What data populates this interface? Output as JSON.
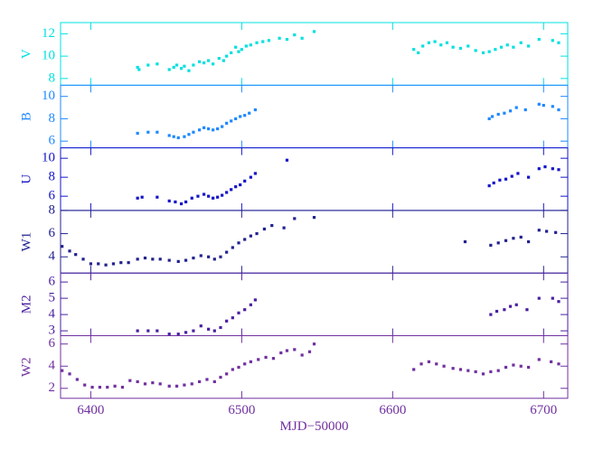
{
  "chart_data": [
    {
      "type": "scatter",
      "ylabel": "V",
      "color": "#00e0e0",
      "x": [
        6431,
        6432,
        6438,
        6444,
        6452,
        6455,
        6457,
        6460,
        6462,
        6465,
        6468,
        6472,
        6475,
        6478,
        6481,
        6485,
        6488,
        6490,
        6493,
        6496,
        6498,
        6500,
        6503,
        6506,
        6510,
        6514,
        6518,
        6525,
        6530,
        6535,
        6540,
        6548,
        6614,
        6617,
        6620,
        6624,
        6628,
        6632,
        6636,
        6640,
        6645,
        6650,
        6655,
        6660,
        6664,
        6668,
        6672,
        6676,
        6680,
        6685,
        6690,
        6697,
        6706,
        6710
      ],
      "values": [
        9.0,
        8.8,
        9.2,
        9.3,
        8.8,
        9.0,
        9.2,
        8.9,
        9.1,
        8.7,
        9.2,
        9.5,
        9.4,
        9.6,
        9.3,
        9.8,
        9.6,
        10.0,
        10.3,
        10.8,
        10.4,
        10.6,
        10.9,
        11.0,
        11.2,
        11.3,
        11.4,
        11.6,
        11.5,
        11.9,
        11.6,
        12.2,
        10.6,
        10.3,
        10.9,
        11.2,
        11.3,
        11.0,
        11.2,
        10.8,
        10.7,
        10.9,
        10.5,
        10.3,
        10.4,
        10.6,
        10.8,
        11.0,
        10.8,
        11.2,
        10.9,
        11.5,
        11.4,
        11.2
      ],
      "xlim": [
        6380,
        6716
      ],
      "xticks": [
        6400,
        6500,
        6600,
        6700
      ],
      "ylim": [
        7.4,
        13
      ],
      "yticks": [
        8,
        10,
        12
      ]
    },
    {
      "type": "scatter",
      "ylabel": "B",
      "color": "#1e88ff",
      "x": [
        6431,
        6438,
        6444,
        6452,
        6455,
        6458,
        6462,
        6465,
        6468,
        6472,
        6475,
        6478,
        6481,
        6484,
        6487,
        6490,
        6493,
        6496,
        6499,
        6502,
        6505,
        6509,
        6664,
        6666,
        6670,
        6674,
        6678,
        6682,
        6688,
        6697,
        6700,
        6706,
        6710
      ],
      "values": [
        6.7,
        6.8,
        6.8,
        6.5,
        6.4,
        6.3,
        6.4,
        6.6,
        6.8,
        7.0,
        7.2,
        7.1,
        7.0,
        7.1,
        7.3,
        7.6,
        7.8,
        8.0,
        8.2,
        8.3,
        8.5,
        8.8,
        8.0,
        8.2,
        8.4,
        8.5,
        8.7,
        9.0,
        8.8,
        9.3,
        9.2,
        9.1,
        8.8
      ],
      "xlim": [
        6380,
        6716
      ],
      "xticks": [
        6400,
        6500,
        6600,
        6700
      ],
      "ylim": [
        5.4,
        11
      ],
      "yticks": [
        6,
        8,
        10
      ]
    },
    {
      "type": "scatter",
      "ylabel": "U",
      "color": "#1414c8",
      "x": [
        6431,
        6434,
        6444,
        6452,
        6456,
        6460,
        6463,
        6467,
        6471,
        6475,
        6478,
        6481,
        6484,
        6487,
        6490,
        6493,
        6496,
        6499,
        6502,
        6506,
        6509,
        6530,
        6664,
        6667,
        6671,
        6675,
        6679,
        6683,
        6690,
        6697,
        6701,
        6706,
        6710
      ],
      "values": [
        5.8,
        5.9,
        5.9,
        5.5,
        5.4,
        5.2,
        5.4,
        5.8,
        6.0,
        6.2,
        6.0,
        5.8,
        5.9,
        6.1,
        6.4,
        6.7,
        7.0,
        7.2,
        7.6,
        8.0,
        8.4,
        9.8,
        7.1,
        7.4,
        7.7,
        7.8,
        8.1,
        8.4,
        8.0,
        8.9,
        9.1,
        8.9,
        8.8
      ],
      "xlim": [
        6380,
        6716
      ],
      "xticks": [
        6400,
        6500,
        6600,
        6700
      ],
      "ylim": [
        4.5,
        11.1
      ],
      "yticks": [
        6,
        8,
        10
      ]
    },
    {
      "type": "scatter",
      "ylabel": "W1",
      "color": "#222290",
      "x": [
        6381,
        6386,
        6390,
        6395,
        6400,
        6405,
        6410,
        6415,
        6420,
        6425,
        6431,
        6436,
        6441,
        6446,
        6452,
        6458,
        6463,
        6468,
        6473,
        6478,
        6482,
        6486,
        6490,
        6494,
        6498,
        6502,
        6506,
        6510,
        6515,
        6520,
        6528,
        6535,
        6548,
        6648,
        6665,
        6670,
        6675,
        6680,
        6685,
        6690,
        6697,
        6702,
        6708
      ],
      "values": [
        4.9,
        4.5,
        4.2,
        3.8,
        3.4,
        3.4,
        3.3,
        3.4,
        3.5,
        3.5,
        3.8,
        3.9,
        3.8,
        3.8,
        3.7,
        3.6,
        3.7,
        3.9,
        4.1,
        4.0,
        3.8,
        4.0,
        4.4,
        4.8,
        5.2,
        5.5,
        5.8,
        6.0,
        6.4,
        6.7,
        6.5,
        7.3,
        7.4,
        5.3,
        5.0,
        5.2,
        5.4,
        5.6,
        5.7,
        5.3,
        6.3,
        6.2,
        6.1
      ],
      "xlim": [
        6380,
        6716
      ],
      "xticks": [
        6400,
        6500,
        6600,
        6700
      ],
      "ylim": [
        2.6,
        8
      ],
      "yticks": [
        4,
        6,
        8
      ]
    },
    {
      "type": "scatter",
      "ylabel": "M2",
      "color": "#4a1fa0",
      "x": [
        6431,
        6438,
        6444,
        6452,
        6458,
        6463,
        6468,
        6473,
        6478,
        6482,
        6486,
        6490,
        6494,
        6498,
        6502,
        6506,
        6509,
        6665,
        6669,
        6674,
        6678,
        6682,
        6689,
        6697,
        6706,
        6710
      ],
      "values": [
        3.0,
        3.0,
        3.0,
        2.8,
        2.8,
        2.9,
        3.0,
        3.3,
        3.1,
        3.0,
        3.2,
        3.6,
        3.8,
        4.1,
        4.3,
        4.6,
        4.9,
        4.0,
        4.2,
        4.3,
        4.5,
        4.6,
        4.3,
        5.0,
        5.0,
        4.8
      ],
      "xlim": [
        6380,
        6716
      ],
      "xticks": [
        6400,
        6500,
        6600,
        6700
      ],
      "ylim": [
        2.7,
        6.55
      ],
      "yticks": [
        3,
        4,
        5,
        6
      ]
    },
    {
      "type": "scatter",
      "ylabel": "W2",
      "color": "#7030a0",
      "xlabel": "MJD−50000",
      "x": [
        6381,
        6386,
        6391,
        6396,
        6401,
        6406,
        6411,
        6416,
        6421,
        6426,
        6431,
        6436,
        6441,
        6446,
        6452,
        6457,
        6462,
        6467,
        6472,
        6477,
        6482,
        6486,
        6490,
        6494,
        6498,
        6502,
        6506,
        6511,
        6516,
        6521,
        6526,
        6530,
        6535,
        6540,
        6545,
        6548,
        6614,
        6619,
        6624,
        6629,
        6634,
        6640,
        6645,
        6650,
        6655,
        6660,
        6665,
        6670,
        6675,
        6680,
        6685,
        6690,
        6697,
        6705,
        6710
      ],
      "values": [
        3.6,
        3.3,
        2.8,
        2.3,
        2.1,
        2.1,
        2.1,
        2.2,
        2.1,
        2.7,
        2.6,
        2.4,
        2.5,
        2.4,
        2.2,
        2.2,
        2.3,
        2.4,
        2.6,
        2.8,
        2.6,
        3.0,
        3.3,
        3.7,
        3.9,
        4.2,
        4.4,
        4.6,
        4.8,
        4.7,
        5.2,
        5.4,
        5.5,
        5.0,
        5.3,
        6.0,
        3.7,
        4.2,
        4.4,
        4.2,
        4.0,
        3.8,
        3.7,
        3.6,
        3.5,
        3.3,
        3.5,
        3.6,
        3.9,
        4.1,
        4.0,
        3.9,
        4.6,
        4.4,
        4.2
      ],
      "xlim": [
        6380,
        6716
      ],
      "xticks": [
        6400,
        6500,
        6600,
        6700
      ],
      "ylim": [
        1.1,
        6.75
      ],
      "yticks": [
        2,
        4,
        6
      ]
    }
  ]
}
